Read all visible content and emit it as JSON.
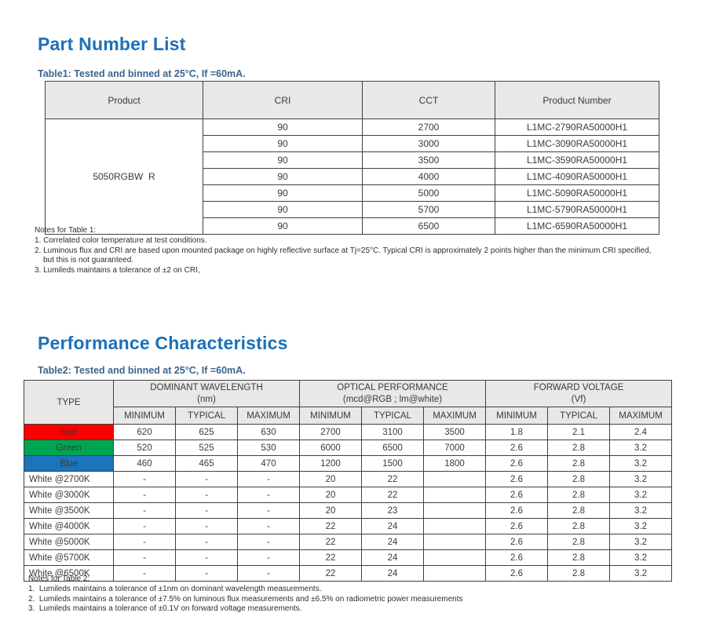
{
  "colors": {
    "accent_blue": "#1c70b8",
    "caption_blue": "#3c648c",
    "header_gray": "#e8e8e8",
    "red_row": "#fe0000",
    "green_row": "#00a551",
    "blue_row": "#1b75bc"
  },
  "section1": {
    "title": "Part Number List",
    "caption": "Table1: Tested and binned at 25°C, If =60mA.",
    "table1": {
      "headers": [
        "Product",
        "CRI",
        "CCT",
        "Product Number"
      ],
      "product": "5050RGBW  R",
      "rows": [
        {
          "cri": "90",
          "cct": "2700",
          "pn": "L1MC-2790RA50000H1"
        },
        {
          "cri": "90",
          "cct": "3000",
          "pn": "L1MC-3090RA50000H1"
        },
        {
          "cri": "90",
          "cct": "3500",
          "pn": "L1MC-3590RA50000H1"
        },
        {
          "cri": "90",
          "cct": "4000",
          "pn": "L1MC-4090RA50000H1"
        },
        {
          "cri": "90",
          "cct": "5000",
          "pn": "L1MC-5090RA50000H1"
        },
        {
          "cri": "90",
          "cct": "5700",
          "pn": "L1MC-5790RA50000H1"
        },
        {
          "cri": "90",
          "cct": "6500",
          "pn": "L1MC-6590RA50000H1"
        }
      ]
    },
    "notes_title": "Notes for Table 1:",
    "notes": [
      "1. Correlated color temperature at test conditions.",
      "2. Luminous flux and CRI are based upon mounted package on highly reflective surface at Tj=25°C. Typical CRI is approximately 2 points higher than the minimum CRI specified, but this is not guaranteed.",
      "3. Lumileds maintains a tolerance of ±2 on CRI,"
    ]
  },
  "section2": {
    "title": "Performance Characteristics",
    "caption": "Table2: Tested and binned at 25°C, If =60mA.",
    "table2": {
      "type_header": "TYPE",
      "groups": [
        {
          "title": "DOMINANT WAVELENGTH",
          "subtitle": "(nm)"
        },
        {
          "title": "OPTICAL PERFORMANCE",
          "subtitle": "(mcd@RGB ; lm@white)"
        },
        {
          "title": "FORWARD VOLTAGE",
          "subtitle": "(Vf)"
        }
      ],
      "subheaders": [
        "MINIMUM",
        "TYPICAL",
        "MAXIMUM"
      ],
      "rows": [
        {
          "type": "Red",
          "bg": "#fe0000",
          "values": [
            "620",
            "625",
            "630",
            "2700",
            "3100",
            "3500",
            "1.8",
            "2.1",
            "2.4"
          ]
        },
        {
          "type": "Green",
          "bg": "#00a551",
          "values": [
            "520",
            "525",
            "530",
            "6000",
            "6500",
            "7000",
            "2.6",
            "2.8",
            "3.2"
          ]
        },
        {
          "type": "Blue",
          "bg": "#1b75bc",
          "values": [
            "460",
            "465",
            "470",
            "1200",
            "1500",
            "1800",
            "2.6",
            "2.8",
            "3.2"
          ]
        },
        {
          "type": "White @2700K",
          "values": [
            "-",
            "-",
            "-",
            "20",
            "22",
            "",
            "2.6",
            "2.8",
            "3.2"
          ]
        },
        {
          "type": "White @3000K",
          "values": [
            "-",
            "-",
            "-",
            "20",
            "22",
            "",
            "2.6",
            "2.8",
            "3.2"
          ]
        },
        {
          "type": "White @3500K",
          "values": [
            "-",
            "-",
            "-",
            "20",
            "23",
            "",
            "2.6",
            "2.8",
            "3.2"
          ]
        },
        {
          "type": "White @4000K",
          "values": [
            "-",
            "-",
            "-",
            "22",
            "24",
            "",
            "2.6",
            "2.8",
            "3.2"
          ]
        },
        {
          "type": "White @5000K",
          "values": [
            "-",
            "-",
            "-",
            "22",
            "24",
            "",
            "2.6",
            "2.8",
            "3.2"
          ]
        },
        {
          "type": "White @5700K",
          "values": [
            "-",
            "-",
            "-",
            "22",
            "24",
            "",
            "2.6",
            "2.8",
            "3.2"
          ]
        },
        {
          "type": "White @6500K",
          "values": [
            "-",
            "-",
            "-",
            "22",
            "24",
            "",
            "2.6",
            "2.8",
            "3.2"
          ]
        }
      ]
    },
    "notes_title": "Notes for Table 2:",
    "notes": [
      "1.  Lumileds maintains a tolerance of ±1nm on dominant wavelength measurements.",
      "2.  Lumileds maintains a tolerance of ±7.5% on luminous flux measurements and ±6.5% on radiometric power measurements",
      "3.  Lumileds maintains a tolerance of ±0.1V on forward voltage measurements."
    ]
  }
}
